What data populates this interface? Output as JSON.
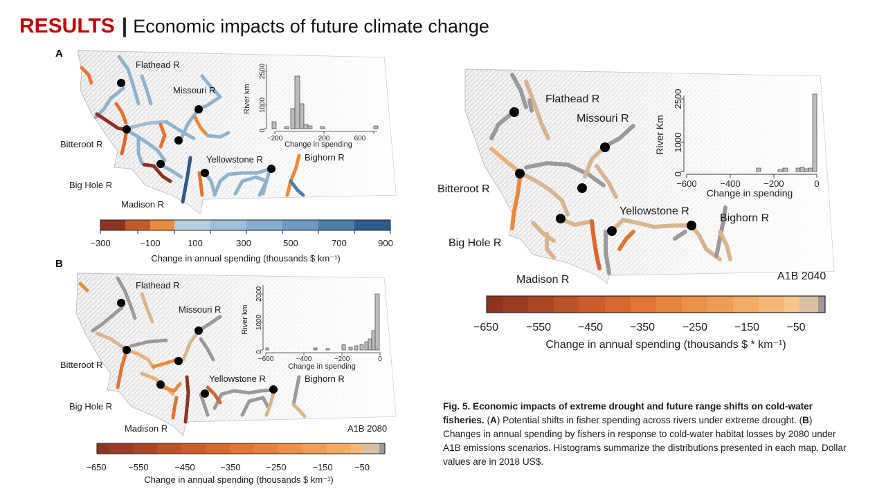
{
  "header": {
    "results_label": "RESULTS",
    "separator": "|",
    "subtitle": "Economic impacts of future climate change"
  },
  "colors": {
    "title_red": "#c00000",
    "gain_blue": "#2c5d8f",
    "loss_red": "#8e3423",
    "loss_orange": "#ea7a32",
    "no_change_gray": "#9a9a9a"
  },
  "panel_a": {
    "label": "A",
    "rivers": [
      "Flathead R",
      "Missouri R",
      "Bitteroot R",
      "Yellowstone R",
      "Bighorn R",
      "Big Hole R",
      "Madison R"
    ],
    "histogram": {
      "ylabel": "River km",
      "xlabel": "Change in spending",
      "yticks": [
        "0",
        "1000",
        "2500"
      ],
      "xticks": [
        "−200",
        "200",
        "600"
      ]
    },
    "colorbar": {
      "ticks": [
        "−300",
        "−100",
        "100",
        "300",
        "500",
        "700",
        "900"
      ],
      "label": "Change in annual spending (thousands $ km⁻¹)"
    }
  },
  "panel_b": {
    "label": "B",
    "scenario": "A1B 2080",
    "rivers": [
      "Flathead R",
      "Missouri R",
      "Bitteroot R",
      "Yellowstone R",
      "Bighorn R",
      "Big Hole R",
      "Madison R"
    ],
    "histogram": {
      "ylabel": "River km",
      "xlabel": "Change in spending",
      "yticks": [
        "0",
        "1000",
        "2000"
      ],
      "xticks": [
        "−600",
        "−400",
        "−200",
        "0"
      ]
    },
    "colorbar": {
      "ticks": [
        "−650",
        "−550",
        "−450",
        "−350",
        "−250",
        "−150",
        "−50"
      ],
      "label": "Change in annual spending (thousands $ km⁻¹)"
    }
  },
  "panel_c": {
    "scenario": "A1B 2040",
    "rivers": [
      "Flathead R",
      "Missouri R",
      "Bitteroot R",
      "Yellowstone R",
      "Bighorn R",
      "Big Hole R",
      "Madison R"
    ],
    "histogram": {
      "ylabel": "River Km",
      "xlabel": "Change in spending",
      "yticks": [
        "0",
        "1000",
        "2500"
      ],
      "xticks": [
        "−600",
        "−400",
        "−200",
        "0"
      ]
    },
    "colorbar": {
      "ticks": [
        "−650",
        "−550",
        "−450",
        "−350",
        "−250",
        "−150",
        "−50"
      ],
      "label": "Change in annual spending (thousands $ * km⁻¹)"
    }
  },
  "caption": {
    "title": "Fig. 5. Economic impacts of extreme drought and future range shifts on cold-water fisheries.",
    "a_marker": "A",
    "a_text": "Potential shifts in fisher spending across rivers under extreme drought.",
    "b_marker": "B",
    "b_text": "Changes in annual spending by fishers in response to cold-water habitat losses by 2080 under A1B emissions scenarios. Histograms summarize the distributions presented in each map. Dollar values are in 2018 US$."
  }
}
